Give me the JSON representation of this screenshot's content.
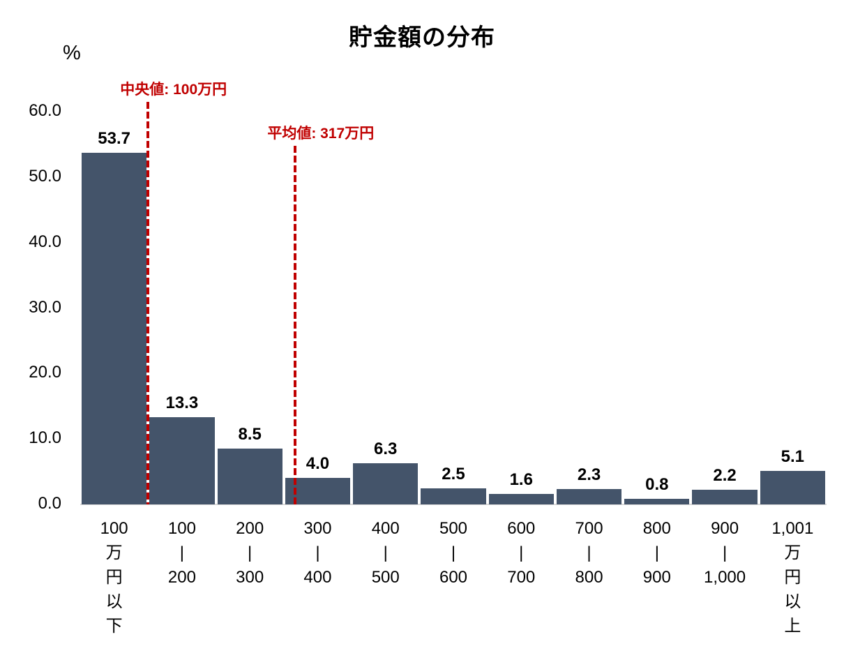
{
  "chart_data": {
    "type": "bar",
    "title": "貯金額の分布",
    "ylabel": "%",
    "xlabel": "",
    "ylim": [
      0,
      60
    ],
    "grid": "off",
    "legend": "none",
    "ytick_values": [
      0,
      10,
      20,
      30,
      40,
      50,
      60
    ],
    "ytick_labels": [
      "0.0",
      "10.0",
      "20.0",
      "30.0",
      "40.0",
      "50.0",
      "60.0"
    ],
    "categories": [
      "100万円以下",
      "100|200",
      "200|300",
      "300|400",
      "400|500",
      "500|600",
      "600|700",
      "700|800",
      "800|900",
      "900|1,000",
      "1,001万円以上"
    ],
    "category_lines": [
      [
        "100",
        "万",
        "円",
        "以",
        "下"
      ],
      [
        "100",
        "|",
        "200"
      ],
      [
        "200",
        "|",
        "300"
      ],
      [
        "300",
        "|",
        "400"
      ],
      [
        "400",
        "|",
        "500"
      ],
      [
        "500",
        "|",
        "600"
      ],
      [
        "600",
        "|",
        "700"
      ],
      [
        "700",
        "|",
        "800"
      ],
      [
        "800",
        "|",
        "900"
      ],
      [
        "900",
        "|",
        "1,000"
      ],
      [
        "1,001",
        "万",
        "円",
        "以",
        "上"
      ]
    ],
    "values": [
      53.7,
      13.3,
      8.5,
      4.0,
      6.3,
      2.5,
      1.6,
      2.3,
      0.8,
      2.2,
      5.1
    ],
    "value_labels": [
      "53.7",
      "13.3",
      "8.5",
      "4.0",
      "6.3",
      "2.5",
      "1.6",
      "2.3",
      "0.8",
      "2.2",
      "5.1"
    ],
    "annotations": [
      {
        "id": "median",
        "label": "中央値: 100万円",
        "value": 100,
        "label_top": 112,
        "line_top": 146
      },
      {
        "id": "mean",
        "label": "平均値: 317万円",
        "value": 317,
        "label_top": 175,
        "line_top": 209
      }
    ],
    "colors": {
      "bar": "#44546A",
      "annotation": "#C00000",
      "text": "#000000",
      "baseline": "#D9D9D9"
    }
  }
}
